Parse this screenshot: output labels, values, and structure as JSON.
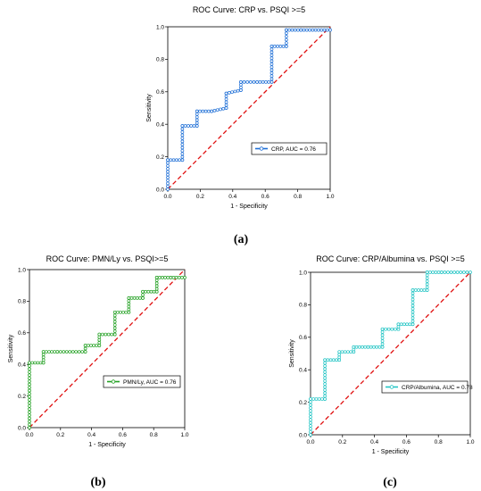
{
  "chart_data": [
    {
      "type": "line",
      "panel": "(a)",
      "title": "ROC Curve: CRP vs. PSQI >=5",
      "xlabel": "1 - Specificity",
      "ylabel": "Sensitivity",
      "xlim": [
        0,
        1
      ],
      "ylim": [
        0,
        1
      ],
      "xticks": [
        "0.0",
        "0.2",
        "0.4",
        "0.6",
        "0.8",
        "1.0"
      ],
      "yticks": [
        "0.0",
        "0.2",
        "0.4",
        "0.6",
        "0.8",
        "1.0"
      ],
      "grid": false,
      "legend_position": "bottom-right",
      "series": [
        {
          "name": "CRP, AUC = 0.76",
          "color": "#1f6fd6",
          "x": [
            0,
            0,
            0.09,
            0.09,
            0.18,
            0.18,
            0.27,
            0.36,
            0.36,
            0.45,
            0.45,
            0.55,
            0.64,
            0.64,
            0.73,
            0.73,
            0.82,
            1.0
          ],
          "y": [
            0,
            0.18,
            0.18,
            0.39,
            0.39,
            0.48,
            0.48,
            0.5,
            0.59,
            0.61,
            0.66,
            0.66,
            0.66,
            0.88,
            0.88,
            0.98,
            0.98,
            0.98
          ]
        }
      ],
      "reference_line": {
        "color": "#e01010",
        "x": [
          0,
          1
        ],
        "y": [
          0,
          1
        ]
      }
    },
    {
      "type": "line",
      "panel": "(b)",
      "title": "ROC Curve: PMN/Ly vs. PSQI>=5",
      "xlabel": "1 - Specificity",
      "ylabel": "Sensitivity",
      "xlim": [
        0,
        1
      ],
      "ylim": [
        0,
        1
      ],
      "xticks": [
        "0.0",
        "0.2",
        "0.4",
        "0.6",
        "0.8",
        "1.0"
      ],
      "yticks": [
        "0.0",
        "0.2",
        "0.4",
        "0.6",
        "0.8",
        "1.0"
      ],
      "grid": false,
      "legend_position": "bottom-right",
      "series": [
        {
          "name": "PMN/Ly, AUC = 0.76",
          "color": "#22a022",
          "x": [
            0,
            0,
            0.09,
            0.09,
            0.18,
            0.36,
            0.36,
            0.45,
            0.45,
            0.55,
            0.55,
            0.64,
            0.64,
            0.73,
            0.73,
            0.82,
            0.82,
            0.91,
            1.0
          ],
          "y": [
            0,
            0.41,
            0.41,
            0.48,
            0.48,
            0.48,
            0.52,
            0.52,
            0.59,
            0.59,
            0.73,
            0.73,
            0.82,
            0.82,
            0.86,
            0.86,
            0.95,
            0.95,
            0.95
          ]
        }
      ],
      "reference_line": {
        "color": "#e01010",
        "x": [
          0,
          1
        ],
        "y": [
          0,
          1
        ]
      }
    },
    {
      "type": "line",
      "panel": "(c)",
      "title": "ROC Curve: CRP/Albumina vs. PSQI >=5",
      "xlabel": "1 - Specificity",
      "ylabel": "Sensitivity",
      "xlim": [
        0,
        1
      ],
      "ylim": [
        0,
        1
      ],
      "xticks": [
        "0.0",
        "0.2",
        "0.4",
        "0.6",
        "0.8",
        "1.0"
      ],
      "yticks": [
        "0.0",
        "0.2",
        "0.4",
        "0.6",
        "0.8",
        "1.0"
      ],
      "grid": false,
      "legend_position": "bottom-right",
      "series": [
        {
          "name": "CRP/Albumina, AUC = 0.78",
          "color": "#22c4c4",
          "x": [
            0,
            0,
            0.09,
            0.09,
            0.18,
            0.18,
            0.27,
            0.27,
            0.36,
            0.45,
            0.45,
            0.55,
            0.55,
            0.64,
            0.64,
            0.73,
            0.73,
            0.82,
            1.0
          ],
          "y": [
            0,
            0.22,
            0.22,
            0.46,
            0.46,
            0.51,
            0.51,
            0.54,
            0.54,
            0.54,
            0.65,
            0.65,
            0.68,
            0.68,
            0.89,
            0.89,
            1.0,
            1.0,
            1.0
          ]
        }
      ],
      "reference_line": {
        "color": "#e01010",
        "x": [
          0,
          1
        ],
        "y": [
          0,
          1
        ]
      }
    }
  ]
}
